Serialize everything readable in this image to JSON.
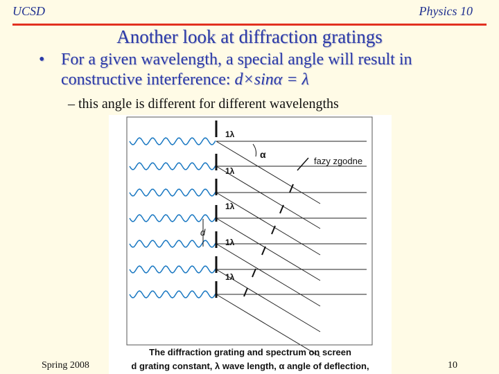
{
  "header": {
    "left": "UCSD",
    "right": "Physics 10"
  },
  "slide": {
    "title": "Another look at diffraction gratings",
    "bullet_main": "For a given wavelength, a special angle will result in constructive interference:",
    "bullet_formula": "d×sinα = λ",
    "sub_bullet": "this angle is different for different wavelengths"
  },
  "figure": {
    "label_lambda": "1λ",
    "label_alpha": "α",
    "label_phase": "fazy zgodne",
    "label_d": "d",
    "caption_line1": "The diffraction grating and spectrum on screen",
    "caption_line2": "d grating constant, λ wave length, α angle of deflection,"
  },
  "footer": {
    "left": "Spring 2008",
    "right": "10"
  },
  "colors": {
    "accent_blue": "#2b3aa8",
    "rule_red": "#e23020",
    "wave_blue": "#1a78c2"
  }
}
